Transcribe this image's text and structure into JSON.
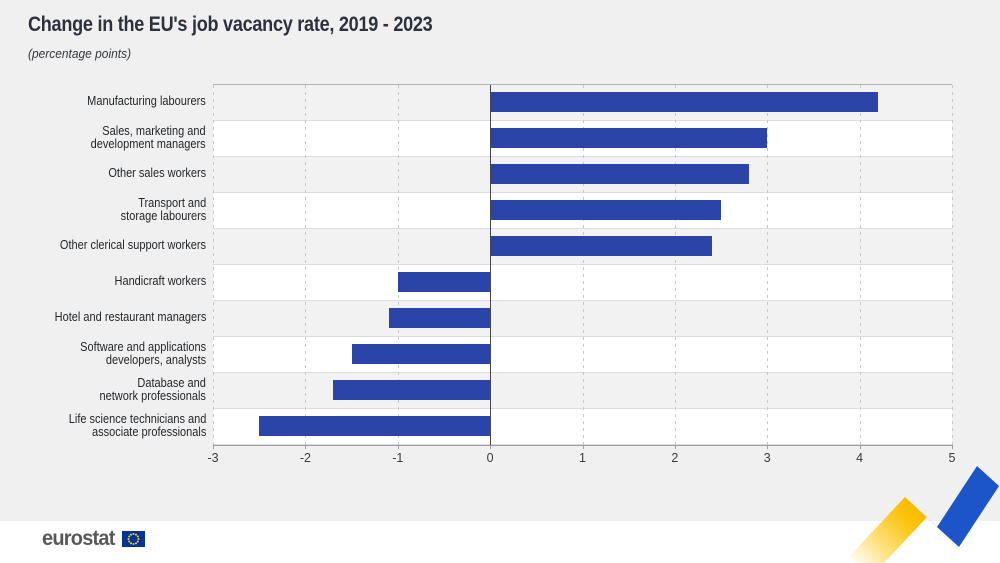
{
  "header": {
    "title": "Change in the EU's job vacancy rate, 2019 - 2023",
    "subtitle": "(percentage points)"
  },
  "chart_data": {
    "type": "bar",
    "orientation": "horizontal",
    "title": "Change in the EU's job vacancy rate, 2019 - 2023",
    "subtitle": "(percentage points)",
    "unit": "percentage points",
    "xlabel": "",
    "ylabel": "",
    "xlim": [
      -3,
      5
    ],
    "x_ticks": [
      -3,
      -2,
      -1,
      0,
      1,
      2,
      3,
      4,
      5
    ],
    "grid": "vertical dashed gridlines at integers, solid dark line at zero, alternating row bands",
    "legend": "none",
    "bars": [
      {
        "label": "Manufacturing labourers",
        "lines": [
          "Manufacturing labourers"
        ],
        "value": 4.2
      },
      {
        "label": "Sales, marketing and development managers",
        "lines": [
          "Sales, marketing and",
          "development managers"
        ],
        "value": 3.0
      },
      {
        "label": "Other sales workers",
        "lines": [
          "Other sales workers"
        ],
        "value": 2.8
      },
      {
        "label": "Transport and storage labourers",
        "lines": [
          "Transport and",
          "storage labourers"
        ],
        "value": 2.5
      },
      {
        "label": "Other clerical support workers",
        "lines": [
          "Other clerical support workers"
        ],
        "value": 2.4
      },
      {
        "label": "Handicraft workers",
        "lines": [
          "Handicraft workers"
        ],
        "value": -1.0
      },
      {
        "label": "Hotel and restaurant managers",
        "lines": [
          "Hotel and restaurant managers"
        ],
        "value": -1.1
      },
      {
        "label": "Software and applications developers, analysts",
        "lines": [
          "Software and applications",
          "developers, analysts"
        ],
        "value": -1.5
      },
      {
        "label": "Database and network professionals",
        "lines": [
          "Database and",
          "network professionals"
        ],
        "value": -1.7
      },
      {
        "label": "Life science technicians and associate professionals",
        "lines": [
          "Life science technicians and",
          "associate professionals"
        ],
        "value": -2.5
      }
    ]
  },
  "footer": {
    "logo_text": "eurostat"
  },
  "colors": {
    "bar": "#2a44a7",
    "page_bg": "#f0f0f0",
    "band_gray": "#f2f2f2",
    "band_white": "#ffffff",
    "zero_line": "#42464e",
    "logo_gray": "#58585a",
    "flag_blue": "#003399",
    "star_yellow": "#ffcc00",
    "ribbon_yellow": "#fcc40c",
    "ribbon_blue": "#1b55c7"
  }
}
